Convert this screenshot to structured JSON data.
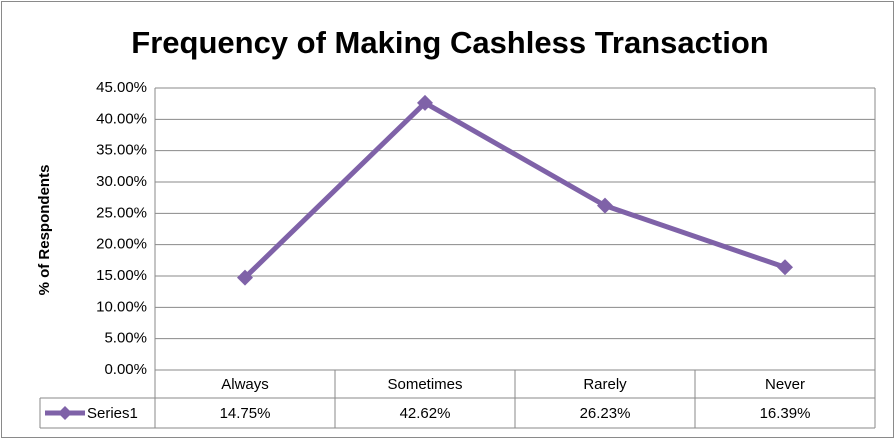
{
  "chart_data": {
    "type": "line",
    "title": "Frequency of Making Cashless Transaction",
    "y_label": "% of Respondents",
    "categories": [
      "Always",
      "Sometimes",
      "Rarely",
      "Never"
    ],
    "series": [
      {
        "name": "Series1",
        "color": "#7f62a8",
        "values": [
          14.75,
          42.62,
          26.23,
          16.39
        ],
        "value_labels": [
          "14.75%",
          "42.62%",
          "26.23%",
          "16.39%"
        ]
      }
    ],
    "ylim": [
      0,
      45
    ],
    "yticks": [
      {
        "value": 0,
        "label": "0.00%"
      },
      {
        "value": 5,
        "label": "5.00%"
      },
      {
        "value": 10,
        "label": "10.00%"
      },
      {
        "value": 15,
        "label": "15.00%"
      },
      {
        "value": 20,
        "label": "20.00%"
      },
      {
        "value": 25,
        "label": "25.00%"
      },
      {
        "value": 30,
        "label": "30.00%"
      },
      {
        "value": 35,
        "label": "35.00%"
      },
      {
        "value": 40,
        "label": "40.00%"
      },
      {
        "value": 45,
        "label": "45.00%"
      }
    ],
    "grid": true
  }
}
